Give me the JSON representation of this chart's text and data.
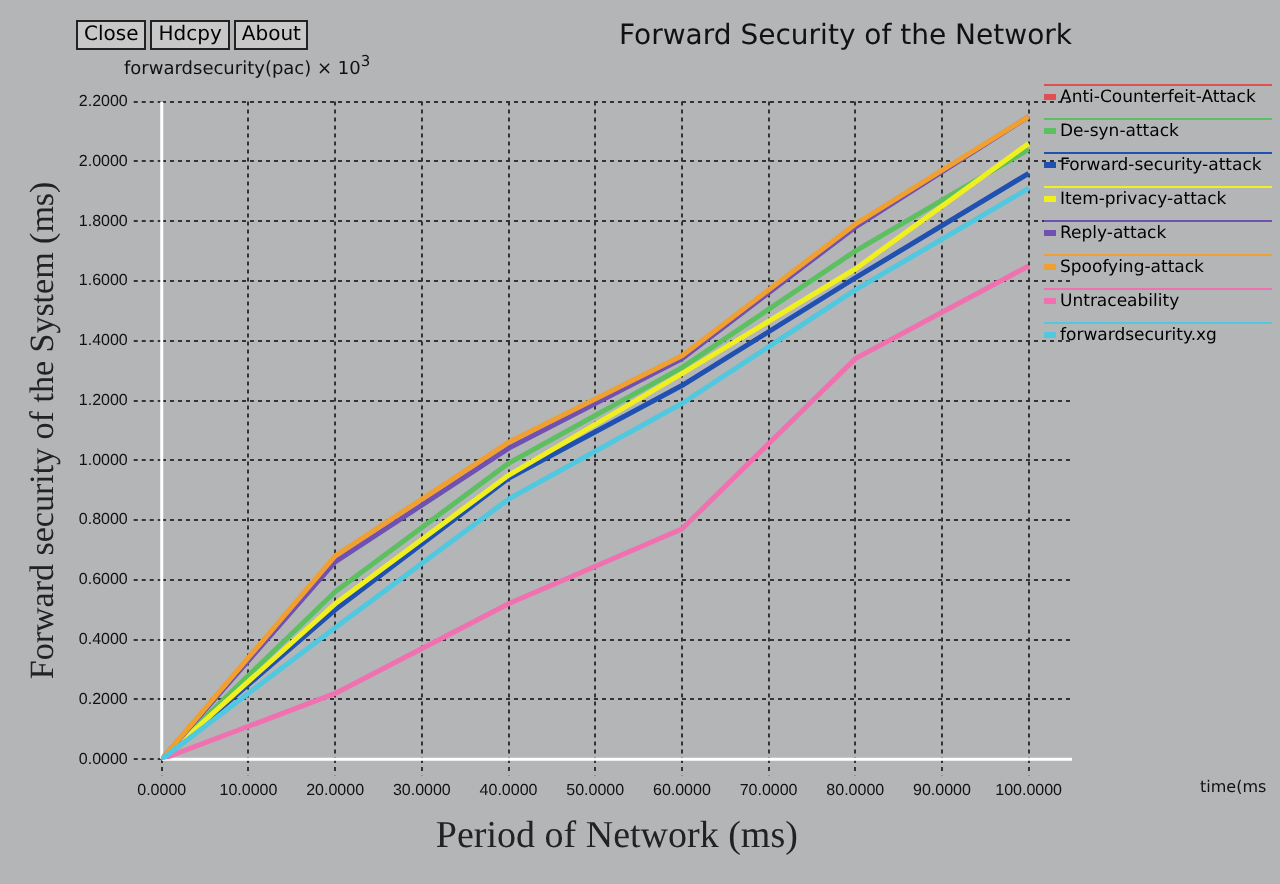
{
  "chart_data": {
    "type": "line",
    "title": "Forward Security of the Network",
    "xlabel": "Period of Network (ms)",
    "ylabel": "Forward security of the System (ms)",
    "annotations": [
      "Close",
      "Hdcpy",
      "About",
      "forwardsecurity(pac) × 10$^{3}$",
      "time(ms"
    ],
    "x": [
      0,
      20,
      40,
      60,
      80,
      100
    ],
    "series": [
      {
        "name": "Anti-Counterfeit-Attack",
        "color": "#e05050",
        "values": [
          null,
          null,
          null,
          null,
          null,
          null
        ]
      },
      {
        "name": "De-syn-attack",
        "color": "#5cc060",
        "values": [
          0,
          0.56,
          0.99,
          1.31,
          1.7,
          2.04
        ]
      },
      {
        "name": "Forward-security-attack",
        "color": "#2050b0",
        "values": [
          0,
          0.5,
          0.94,
          1.25,
          1.61,
          1.96
        ]
      },
      {
        "name": "Item-privacy-attack",
        "color": "#f0f020",
        "values": [
          0,
          0.52,
          0.95,
          1.29,
          1.64,
          2.06
        ]
      },
      {
        "name": "Reply-attack",
        "color": "#7050b0",
        "values": [
          0,
          0.66,
          1.04,
          1.34,
          1.78,
          2.15
        ]
      },
      {
        "name": "Spoofying-attack",
        "color": "#f0a030",
        "values": [
          0,
          0.68,
          1.06,
          1.35,
          1.79,
          2.15
        ]
      },
      {
        "name": "Untraceability",
        "color": "#f070b0",
        "values": [
          0,
          0.22,
          0.52,
          0.77,
          1.34,
          1.65
        ]
      },
      {
        "name": "forwardsecurity.xg",
        "color": "#50c8e0",
        "values": [
          0,
          0.44,
          0.87,
          1.19,
          1.57,
          1.91
        ]
      }
    ],
    "xlim": [
      0,
      105
    ],
    "xticks": [
      {
        "value": 0,
        "label": "0.0000"
      },
      {
        "value": 10,
        "label": "10.0000"
      },
      {
        "value": 20,
        "label": "20.0000"
      },
      {
        "value": 30,
        "label": "30.0000"
      },
      {
        "value": 40,
        "label": "40.0000"
      },
      {
        "value": 50,
        "label": "50.0000"
      },
      {
        "value": 60,
        "label": "60.0000"
      },
      {
        "value": 70,
        "label": "70.0000"
      },
      {
        "value": 80,
        "label": "80.0000"
      },
      {
        "value": 90,
        "label": "90.0000"
      },
      {
        "value": 100,
        "label": "100.0000"
      }
    ],
    "ylim": [
      0,
      2.2
    ],
    "yticks": [
      {
        "value": 0,
        "label": "0.0000"
      },
      {
        "value": 0.2,
        "label": "0.2000"
      },
      {
        "value": 0.4,
        "label": "0.4000"
      },
      {
        "value": 0.6,
        "label": "0.6000"
      },
      {
        "value": 0.8,
        "label": "0.8000"
      },
      {
        "value": 1,
        "label": "1.0000"
      },
      {
        "value": 1.2,
        "label": "1.2000"
      },
      {
        "value": 1.4,
        "label": "1.4000"
      },
      {
        "value": 1.6,
        "label": "1.6000"
      },
      {
        "value": 1.8,
        "label": "1.8000"
      },
      {
        "value": 2,
        "label": "2.0000"
      },
      {
        "value": 2.2,
        "label": "2.2000"
      }
    ],
    "grid": true,
    "legend": "right",
    "marker": "none",
    "line_style": "solid"
  }
}
